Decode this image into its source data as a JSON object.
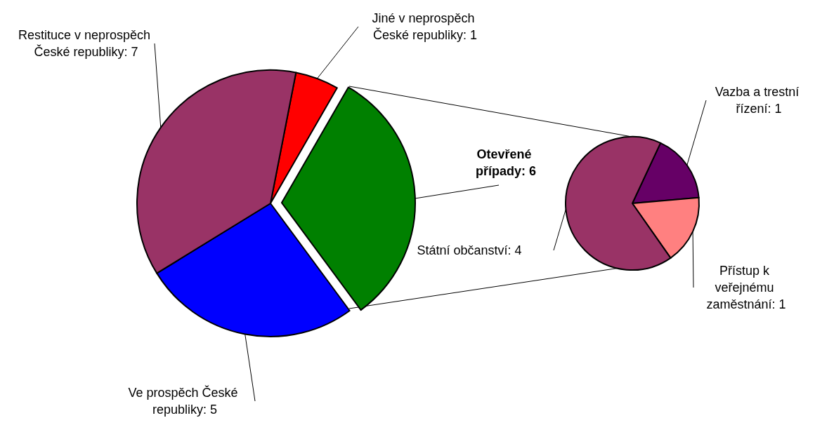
{
  "chart_data": [
    {
      "type": "pie",
      "categories": [
        "Jiné v neprospěch České republiky: 1",
        "Otevřené případy: 6",
        "Ve prospěch České republiky: 5",
        "Restituce v neprospěch České republiky: 7"
      ],
      "values": [
        1,
        6,
        5,
        7
      ],
      "colors": [
        "#ff0000",
        "#008000",
        "#0000ff",
        "#993366"
      ]
    },
    {
      "type": "pie",
      "categories": [
        "Vazba a trestní řízení: 1",
        "Přístup k veřejnému zaměstnání: 1",
        "Státní občanství: 4"
      ],
      "values": [
        1,
        1,
        4
      ],
      "colors": [
        "#660066",
        "#ff8080",
        "#993366"
      ]
    }
  ]
}
